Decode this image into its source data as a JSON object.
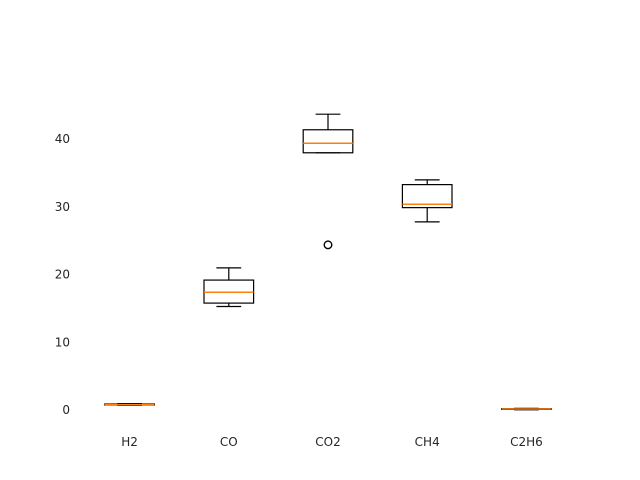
{
  "chart_data": {
    "type": "boxplot",
    "title": "",
    "xlabel": "",
    "ylabel": "",
    "ylim": [
      -2.5,
      52
    ],
    "yticks": [
      0,
      10,
      20,
      30,
      40
    ],
    "grid": false,
    "categories": [
      "H2",
      "CO",
      "CO2",
      "CH4",
      "C2H6"
    ],
    "boxes": [
      {
        "whislo": 0.7,
        "q1": 0.75,
        "med": 0.8,
        "q3": 0.9,
        "whishi": 0.95,
        "fliers": []
      },
      {
        "whislo": 15.3,
        "q1": 15.8,
        "med": 17.4,
        "q3": 19.2,
        "whishi": 21.0,
        "fliers": []
      },
      {
        "whislo": 38.0,
        "q1": 38.0,
        "med": 39.4,
        "q3": 41.4,
        "whishi": 43.7,
        "fliers": [
          24.4
        ]
      },
      {
        "whislo": 27.8,
        "q1": 29.9,
        "med": 30.4,
        "q3": 33.3,
        "whishi": 34.0,
        "fliers": []
      },
      {
        "whislo": 0.05,
        "q1": 0.1,
        "med": 0.15,
        "q3": 0.2,
        "whishi": 0.25,
        "fliers": []
      }
    ],
    "colors": {
      "box": "#000000",
      "median": "#ff7f0e",
      "text": "#262626"
    }
  }
}
